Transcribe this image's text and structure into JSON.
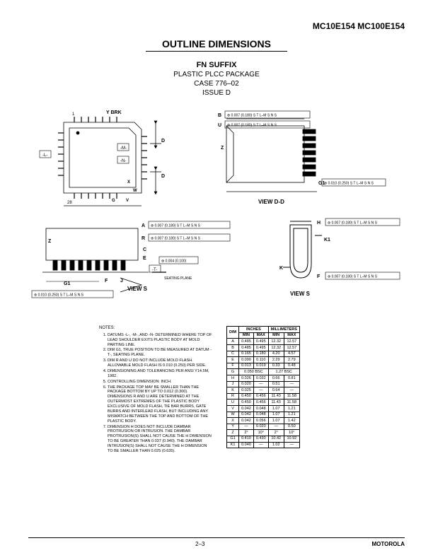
{
  "header": {
    "part_number": "MC10E154 MC100E154",
    "section_title": "OUTLINE DIMENSIONS",
    "suffix": "FN SUFFIX",
    "pkg_line1": "PLASTIC PLCC PACKAGE",
    "pkg_line2": "CASE 776–02",
    "pkg_line3": "ISSUE D"
  },
  "labels": {
    "ybrk": "Y BRK",
    "view_dd": "VIEW D-D",
    "view_s": "VIEW S",
    "seating": "SEATING PLANE",
    "notes_heading": "NOTES:"
  },
  "tolerances": {
    "t1": "0.007 (0.180)",
    "t2": "0.010 (0.250)",
    "t3": "0.004 (0.100)",
    "gdtsym": "⊕",
    "tlm": "T L–M",
    "n": "N",
    "s": "S",
    "t": "T"
  },
  "dim_letters": {
    "A": "A",
    "B": "B",
    "C": "C",
    "D": "D",
    "E": "E",
    "F": "F",
    "G": "G",
    "G1": "G1",
    "H": "H",
    "J": "J",
    "K": "K",
    "K1": "K1",
    "L": "-L-",
    "M": "-M-",
    "N": "-N-",
    "R": "R",
    "U": "U",
    "V": "V",
    "W": "W",
    "X": "X",
    "Y": "Y",
    "Z": "Z",
    "T": "-T-",
    "pin1": "1",
    "pin28": "28"
  },
  "notes": [
    "DATUMS -L-, -M-, AND -N- DETERMINED WHERE TOP OF LEAD SHOULDER EXITS PLASTIC BODY AT MOLD PARTING LINE.",
    "DIM G1, TRUE POSITION TO BE MEASURED AT DATUM -T-, SEATING PLANE.",
    "DIM R AND U DO NOT INCLUDE MOLD FLASH. ALLOWABLE MOLD FLASH IS 0.010 (0.250) PER SIDE.",
    "DIMENSIONING AND TOLERANCING PER ANSI Y14.5M, 1982.",
    "CONTROLLING DIMENSION: INCH.",
    "THE PACKAGE TOP MAY BE SMALLER THAN THE PACKAGE BOTTOM BY UP TO 0.012 (0.300). DIMENSIONS R AND U ARE DETERMINED AT THE OUTERMOST EXTREMES OF THE PLASTIC BODY EXCLUSIVE OF MOLD FLASH, TIE BAR BURRS, GATE BURRS AND INTERLEAD FLASH, BUT INCLUDING ANY MISMATCH BETWEEN THE TOP AND BOTTOM OF THE PLASTIC BODY.",
    "DIMENSION H DOES NOT INCLUDE DAMBAR PROTRUSION OR INTRUSION. THE DAMBAR PROTRUSION(S) SHALL NOT CAUSE THE H DIMENSION TO BE GREATER THAN 0.037 (0.940). THE DAMBAR INTRUSION(S) SHALL NOT CAUSE THE H DIMENSION TO BE SMALLER THAN 0.025 (0.635)."
  ],
  "dim_table": {
    "header_units": [
      "INCHES",
      "MILLIMETERS"
    ],
    "header_sub": [
      "DIM",
      "MIN",
      "MAX",
      "MIN",
      "MAX"
    ],
    "rows": [
      [
        "A",
        "0.485",
        "0.495",
        "12.32",
        "12.57"
      ],
      [
        "B",
        "0.485",
        "0.495",
        "12.32",
        "12.57"
      ],
      [
        "C",
        "0.165",
        "0.180",
        "4.20",
        "4.57"
      ],
      [
        "E",
        "0.090",
        "0.110",
        "2.29",
        "2.79"
      ],
      [
        "F",
        "0.013",
        "0.019",
        "0.33",
        "0.48"
      ],
      [
        "G",
        "0.050 BSC",
        "",
        "1.27 BSC",
        ""
      ],
      [
        "H",
        "0.026",
        "0.032",
        "0.66",
        "0.81"
      ],
      [
        "J",
        "0.020",
        "—",
        "0.51",
        "—"
      ],
      [
        "K",
        "0.025",
        "—",
        "0.64",
        "—"
      ],
      [
        "R",
        "0.450",
        "0.456",
        "11.43",
        "11.58"
      ],
      [
        "U",
        "0.450",
        "0.456",
        "11.43",
        "11.58"
      ],
      [
        "V",
        "0.042",
        "0.048",
        "1.07",
        "1.21"
      ],
      [
        "W",
        "0.042",
        "0.048",
        "1.07",
        "1.21"
      ],
      [
        "X",
        "0.042",
        "0.056",
        "1.07",
        "1.42"
      ],
      [
        "Y",
        "—",
        "0.020",
        "—",
        "0.50"
      ],
      [
        "Z",
        "2°",
        "10°",
        "2°",
        "10°"
      ],
      [
        "G1",
        "0.410",
        "0.430",
        "10.42",
        "10.92"
      ],
      [
        "K1",
        "0.040",
        "—",
        "1.02",
        "—"
      ]
    ]
  },
  "footer": {
    "page": "2–3",
    "brand": "MOTOROLA"
  },
  "colors": {
    "bg": "#ffffff",
    "line": "#000000"
  }
}
